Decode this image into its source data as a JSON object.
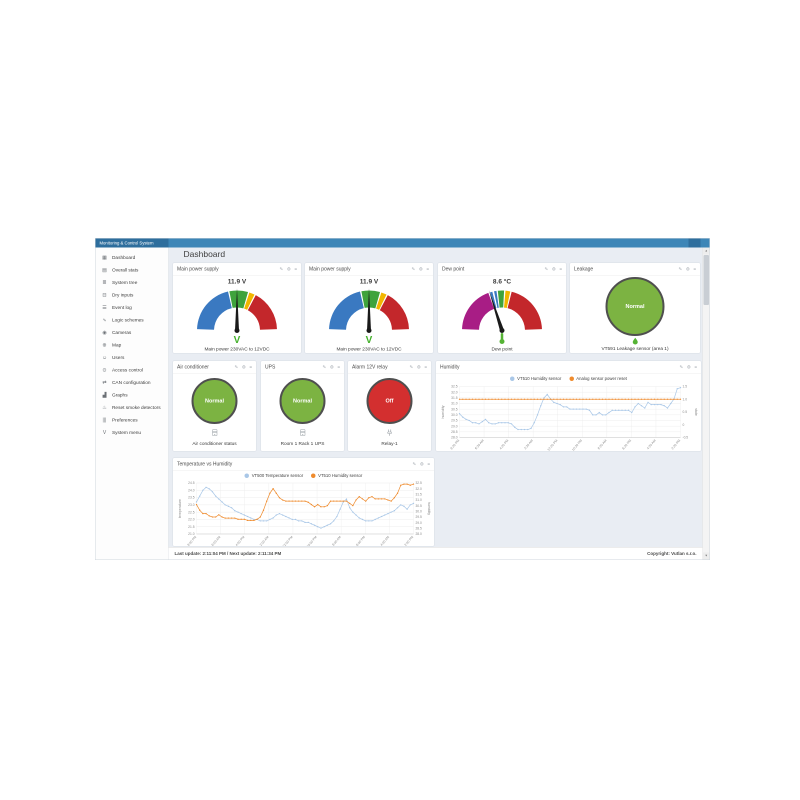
{
  "app": {
    "title": "Monitoring & Control System"
  },
  "page": {
    "title": "Dashboard"
  },
  "sidebar": {
    "items": [
      {
        "label": "Dashboard",
        "icon": "dashboard",
        "glyph": "▦"
      },
      {
        "label": "Overall stats",
        "icon": "overall-stats",
        "glyph": "▤"
      },
      {
        "label": "System tree",
        "icon": "system-tree",
        "glyph": "≣"
      },
      {
        "label": "Dry inputs",
        "icon": "dry-inputs",
        "glyph": "⊟"
      },
      {
        "label": "Event log",
        "icon": "event-log",
        "glyph": "☰"
      },
      {
        "label": "Logic schemes",
        "icon": "logic-schemes",
        "glyph": "∿"
      },
      {
        "label": "Cameras",
        "icon": "cameras",
        "glyph": "◉"
      },
      {
        "label": "Map",
        "icon": "map",
        "glyph": "⊕"
      },
      {
        "label": "Users",
        "icon": "users",
        "glyph": "☺"
      },
      {
        "label": "Access control",
        "icon": "access-control",
        "glyph": "⊙"
      },
      {
        "label": "CAN configuration",
        "icon": "can-configuration",
        "glyph": "⇄"
      },
      {
        "label": "Graphs",
        "icon": "graphs",
        "glyph": "▟"
      },
      {
        "label": "Reset smoke detectors",
        "icon": "reset-smoke-detectors",
        "glyph": "♨"
      },
      {
        "label": "Preferences",
        "icon": "preferences",
        "glyph": "|||"
      },
      {
        "label": "System menu",
        "icon": "system-menu",
        "glyph": "V"
      }
    ]
  },
  "panel_header_icons": [
    {
      "name": "edit",
      "glyph": "✎"
    },
    {
      "name": "settings",
      "glyph": "⚙"
    },
    {
      "name": "menu",
      "glyph": "≡"
    }
  ],
  "panels": {
    "row1": [
      {
        "kind": "gauge",
        "name": "main-power-supply-1",
        "title": "Main power supply",
        "value": "11.9 V",
        "caption": "Main power 230VAC to 12VDC",
        "needle_deg": 90,
        "status_glyph": "V",
        "status_color": "#43b02a",
        "segments": [
          {
            "color": "#3a79c1",
            "from": 2,
            "to": 77
          },
          {
            "color": "#3fa33c",
            "from": 79,
            "to": 106
          },
          {
            "color": "#f2b600",
            "from": 108,
            "to": 116
          },
          {
            "color": "#c3272b",
            "from": 118,
            "to": 178
          }
        ]
      },
      {
        "kind": "gauge",
        "name": "main-power-supply-2",
        "title": "Main power supply",
        "value": "11.9 V",
        "caption": "Main power 230VAC to 12VDC",
        "needle_deg": 90,
        "status_glyph": "V",
        "status_color": "#43b02a",
        "segments": [
          {
            "color": "#3a79c1",
            "from": 2,
            "to": 77
          },
          {
            "color": "#3fa33c",
            "from": 79,
            "to": 106
          },
          {
            "color": "#f2b600",
            "from": 108,
            "to": 116
          },
          {
            "color": "#c3272b",
            "from": 118,
            "to": 178
          }
        ]
      },
      {
        "kind": "gauge",
        "name": "dew-point",
        "title": "Dew point",
        "value": "8.6 °C",
        "caption": "Dew point",
        "needle_deg": 72,
        "status_glyph": "thermometer",
        "status_color": "#55b334",
        "segments": [
          {
            "color": "#a81d85",
            "from": 2,
            "to": 70
          },
          {
            "color": "#3a79c1",
            "from": 72.5,
            "to": 76
          },
          {
            "color": "#3a79c1",
            "from": 78.5,
            "to": 82
          },
          {
            "color": "#3fa33c",
            "from": 84,
            "to": 93
          },
          {
            "color": "#f2b600",
            "from": 95,
            "to": 102
          },
          {
            "color": "#c3272b",
            "from": 104,
            "to": 178
          }
        ]
      },
      {
        "kind": "status",
        "name": "leakage",
        "title": "Leakage",
        "state": "Normal",
        "circle_color": "#7cb342",
        "circle_size": 118,
        "icon": "leak",
        "caption": "VT591 Leakage sensor (area 1)"
      }
    ],
    "row2": [
      {
        "kind": "status",
        "name": "air-conditioner",
        "title": "Air conditioner",
        "state": "Normal",
        "circle_color": "#7cb342",
        "circle_size": 92,
        "icon": "cabinet",
        "caption": "Air conditioner status"
      },
      {
        "kind": "status",
        "name": "ups",
        "title": "UPS",
        "state": "Normal",
        "circle_color": "#7cb342",
        "circle_size": 92,
        "icon": "cabinet",
        "caption": "Room 1 Rack 1 UPS"
      },
      {
        "kind": "status",
        "name": "alarm-12v-relay",
        "title": "Alarm 12V relay",
        "state": "Off",
        "circle_color": "#d32f2f",
        "circle_size": 92,
        "icon": "relay",
        "caption": "Relay-1"
      },
      {
        "kind": "chart",
        "name": "humidity-chart",
        "title": "Humidity",
        "chart_id": "humidity"
      }
    ],
    "row3": [
      {
        "kind": "chart",
        "name": "temp-vs-humidity-chart",
        "title": "Temperature vs Humidity",
        "chart_id": "temp_humidity"
      }
    ]
  },
  "chart_data": [
    {
      "id": "humidity",
      "type": "line",
      "title": "Humidity",
      "left_axis": {
        "label": "humidity",
        "min": 28.0,
        "max": 32.5,
        "ticks": [
          "32.5",
          "32.0",
          "31.5",
          "31.0",
          "30.5",
          "30.0",
          "29.5",
          "29.0",
          "28.5",
          "28.0"
        ]
      },
      "right_axis": {
        "label": "state",
        "min": -0.5,
        "max": 1.5,
        "ticks": [
          "1.5",
          "1.0",
          "0.5",
          "0",
          "-0.5"
        ]
      },
      "x_labels": [
        "8:20 PM",
        "6:20 AM",
        "4:20 PM",
        "2:20 AM",
        "12:20 PM",
        "10:20 PM",
        "8:20 AM",
        "6:20 PM",
        "4:20 AM",
        "2:20 PM"
      ],
      "grid": true,
      "legend_position": "top",
      "series": [
        {
          "name": "VT510 Humidity sensor",
          "color": "#a9c7e7",
          "axis": "left",
          "values": [
            30.1,
            29.8,
            29.6,
            29.5,
            29.3,
            29.3,
            29.2,
            29.4,
            29.6,
            29.3,
            29.2,
            29.2,
            29.3,
            29.3,
            29.3,
            29.3,
            29.2,
            28.9,
            28.7,
            28.7,
            28.7,
            28.7,
            28.8,
            29.3,
            30.0,
            30.8,
            31.5,
            31.8,
            31.4,
            31.1,
            31.0,
            30.9,
            30.7,
            30.7,
            30.5,
            30.5,
            30.5,
            30.5,
            30.5,
            30.5,
            30.4,
            30.0,
            30.0,
            30.2,
            30.0,
            30.0,
            30.2,
            30.4,
            30.4,
            30.4,
            30.4,
            30.4,
            30.4,
            30.2,
            30.7,
            31.0,
            30.8,
            30.6,
            31.1,
            30.9,
            30.9,
            30.9,
            30.9,
            30.8,
            30.6,
            31.0,
            31.4,
            32.3,
            32.4
          ]
        },
        {
          "name": "Analog sensor power reset",
          "color": "#ef8b2d",
          "axis": "right",
          "constant": 1.0
        }
      ]
    },
    {
      "id": "temp_humidity",
      "type": "line",
      "title": "Temperature vs Humidity",
      "left_axis": {
        "label": "temperature",
        "min": 21.0,
        "max": 24.5,
        "ticks": [
          "24.5",
          "24.0",
          "23.5",
          "23.0",
          "22.5",
          "22.0",
          "21.5",
          "21.0"
        ]
      },
      "right_axis": {
        "label": "humidity",
        "min": 28.0,
        "max": 32.5,
        "ticks": [
          "32.5",
          "32.0",
          "31.5",
          "31.0",
          "30.5",
          "30.0",
          "29.5",
          "29.0",
          "28.5",
          "28.0"
        ]
      },
      "x_labels": [
        "8:00 PM",
        "6:00 AM",
        "4:00 PM",
        "2:00 AM",
        "12:00 PM",
        "10:00 PM",
        "8:00 AM",
        "6:00 PM",
        "4:00 AM",
        "2:00 PM"
      ],
      "grid": true,
      "legend_position": "top",
      "series": [
        {
          "name": "VT500 Temperature sensor",
          "color": "#a9c7e7",
          "axis": "left",
          "values": [
            23.2,
            23.6,
            24.0,
            24.2,
            24.1,
            23.9,
            23.6,
            23.4,
            23.2,
            23.0,
            22.9,
            22.8,
            22.6,
            22.5,
            22.4,
            22.3,
            22.2,
            22.1,
            22.0,
            22.0,
            21.9,
            21.9,
            21.9,
            22.0,
            22.1,
            22.3,
            22.4,
            22.3,
            22.2,
            22.1,
            22.0,
            22.0,
            21.9,
            21.9,
            21.8,
            21.8,
            21.7,
            21.6,
            21.5,
            21.4,
            21.5,
            21.6,
            21.7,
            21.9,
            22.2,
            22.7,
            23.2,
            23.4,
            22.8,
            22.5,
            22.3,
            22.1,
            22.0,
            21.9,
            21.9,
            21.9,
            22.0,
            22.1,
            22.2,
            22.3,
            22.4,
            22.5,
            22.6,
            22.8,
            23.0,
            22.9,
            22.7,
            23.0,
            23.1
          ]
        },
        {
          "name": "VT510 Humidity sensor",
          "color": "#ef8b2d",
          "axis": "right",
          "values": [
            30.6,
            30.1,
            29.8,
            29.8,
            29.6,
            29.5,
            29.5,
            29.7,
            29.5,
            29.4,
            29.4,
            29.4,
            29.4,
            29.3,
            29.3,
            29.3,
            29.2,
            29.2,
            29.2,
            29.3,
            29.5,
            30.1,
            30.9,
            31.6,
            32.0,
            31.6,
            31.2,
            31.0,
            30.9,
            30.9,
            30.9,
            30.9,
            30.9,
            30.9,
            30.9,
            30.8,
            30.6,
            30.4,
            30.6,
            30.4,
            30.4,
            30.5,
            30.9,
            30.9,
            30.9,
            30.9,
            30.9,
            30.9,
            30.7,
            30.5,
            31.0,
            31.3,
            31.1,
            30.9,
            31.2,
            31.3,
            31.1,
            31.1,
            31.1,
            31.1,
            31.0,
            30.9,
            31.2,
            31.6,
            32.3,
            32.4,
            32.4,
            32.3,
            32.4
          ]
        }
      ]
    }
  ],
  "footer": {
    "left": "Last update: 2:11:04 PM / Next update: 2:11:34 PM",
    "right": "Copyright: Vutlan s.r.o."
  },
  "scrollbar": {
    "up_glyph": "▲",
    "down_glyph": "▼"
  }
}
